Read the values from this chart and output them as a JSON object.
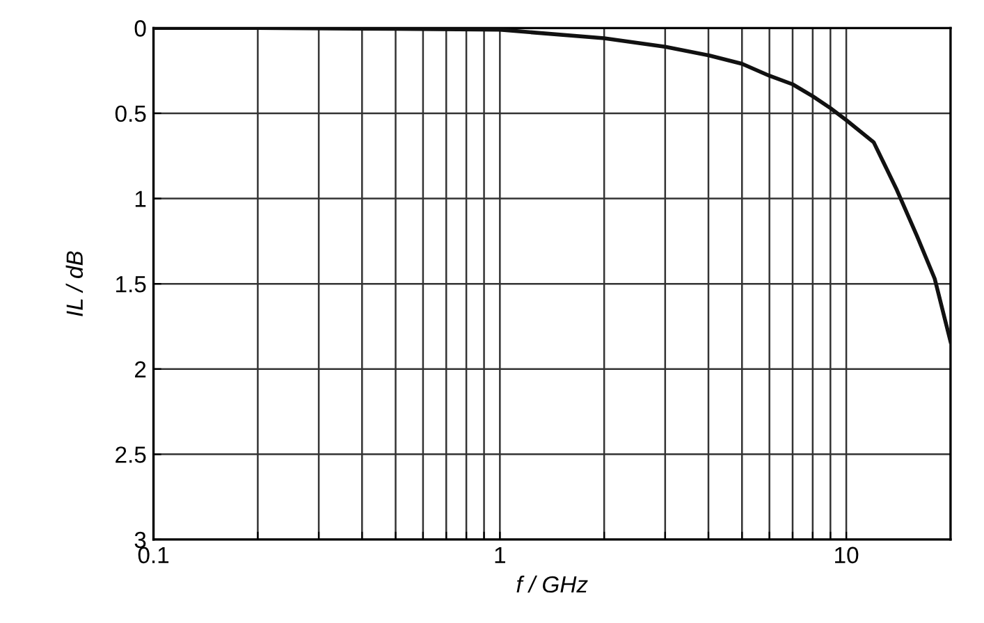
{
  "chart_data": {
    "type": "line",
    "xlabel": "f / GHz",
    "ylabel": "IL / dB",
    "log": "x",
    "grid": true,
    "marker": "none",
    "line_style": "solid",
    "series": [
      {
        "color": "#111111",
        "x": [
          0.1,
          0.2,
          0.5,
          1,
          2,
          3,
          4,
          5,
          6,
          7,
          8,
          9,
          10,
          12,
          14,
          16,
          18,
          20
        ],
        "values": [
          0,
          0,
          0.005,
          0.01,
          0.06,
          0.11,
          0.16,
          0.21,
          0.28,
          0.33,
          0.4,
          0.47,
          0.54,
          0.67,
          0.95,
          1.22,
          1.47,
          1.84
        ]
      }
    ],
    "xlim": [
      0.1,
      20
    ],
    "ylim": [
      3,
      0
    ],
    "xticks": [
      0.1,
      {
        "value": 0.2,
        "label": null
      },
      {
        "value": 0.3,
        "label": null
      },
      {
        "value": 0.4,
        "label": null
      },
      {
        "value": 0.5,
        "label": null
      },
      {
        "value": 0.6,
        "label": null
      },
      {
        "value": 0.7,
        "label": null
      },
      {
        "value": 0.8,
        "label": null
      },
      {
        "value": 0.9,
        "label": null
      },
      1,
      {
        "value": 2,
        "label": null
      },
      {
        "value": 3,
        "label": null
      },
      {
        "value": 4,
        "label": null
      },
      {
        "value": 5,
        "label": null
      },
      {
        "value": 6,
        "label": null
      },
      {
        "value": 7,
        "label": null
      },
      {
        "value": 8,
        "label": null
      },
      {
        "value": 9,
        "label": null
      },
      10
    ],
    "yticks": [
      0,
      0.5,
      1,
      1.5,
      2,
      2.5,
      3
    ]
  }
}
